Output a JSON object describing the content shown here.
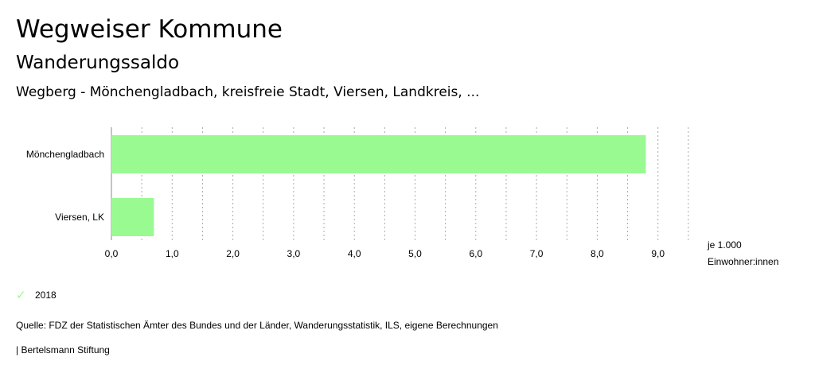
{
  "header": {
    "title": "Wegweiser Kommune",
    "subtitle": "Wanderungssaldo",
    "region": "Wegberg - Mönchengladbach, kreisfreie Stadt, Viersen, Landkreis, ..."
  },
  "chart_data": {
    "type": "bar",
    "orientation": "horizontal",
    "categories": [
      "Mönchengladbach",
      "Viersen, LK"
    ],
    "series": [
      {
        "name": "2018",
        "values": [
          8.8,
          0.7
        ]
      }
    ],
    "xlim": [
      0,
      9.5
    ],
    "ticks": [
      0,
      1,
      2,
      3,
      4,
      5,
      6,
      7,
      8,
      9
    ],
    "tick_labels": [
      "0,0",
      "1,0",
      "2,0",
      "3,0",
      "4,0",
      "5,0",
      "6,0",
      "7,0",
      "8,0",
      "9,0"
    ],
    "unit_label": [
      "je 1.000",
      "Einwohner:innen"
    ],
    "grid": true,
    "bar_color": "#9afa92"
  },
  "legend": {
    "label": "2018",
    "color": "#9afa92"
  },
  "footer": {
    "source": "Quelle: FDZ der Statistischen Ämter des Bundes und der Länder, Wanderungsstatistik, ILS, eigene Berechnungen",
    "credit": "| Bertelsmann Stiftung"
  }
}
